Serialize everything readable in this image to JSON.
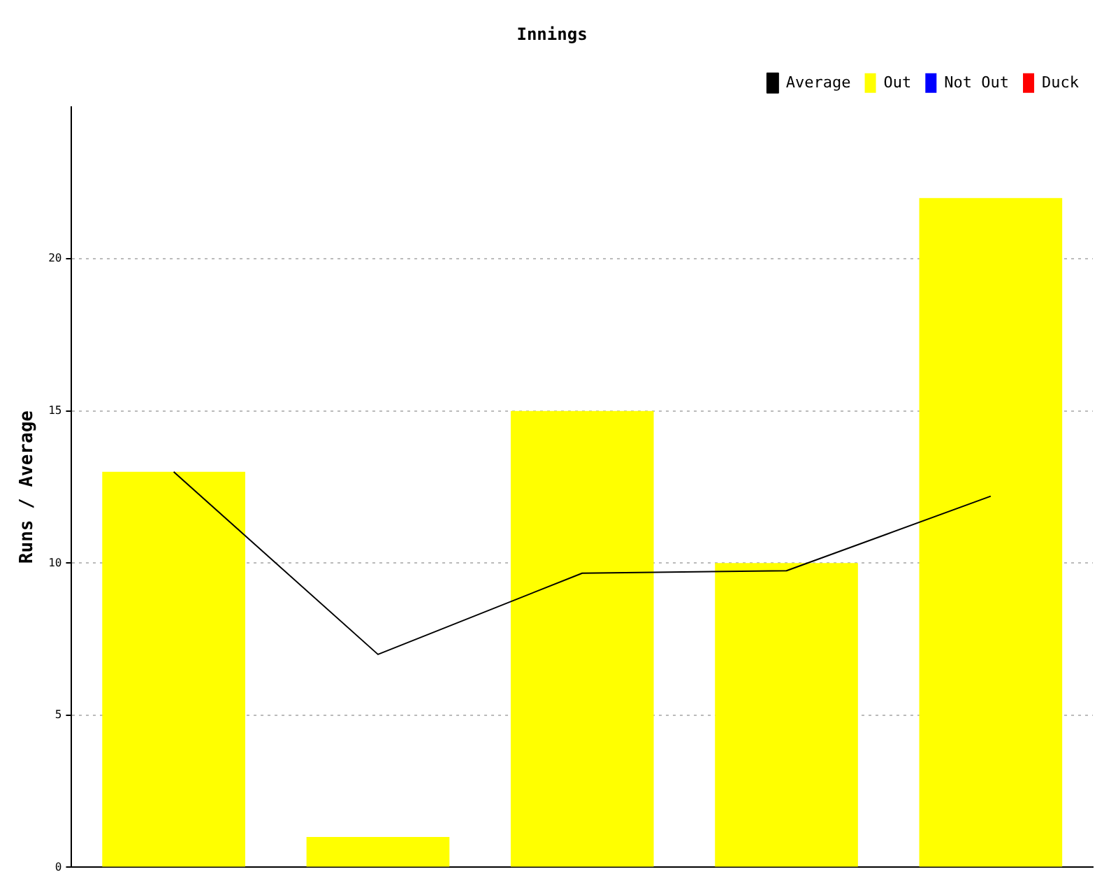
{
  "chart_data": {
    "type": "bar",
    "title": "Innings",
    "ylabel": "Runs / Average",
    "categories": [
      null,
      null,
      null,
      null,
      null
    ],
    "stacked": true,
    "series": [
      {
        "name": "Average",
        "type": "line",
        "color": "#000000",
        "values": [
          13,
          7,
          9.67,
          9.75,
          12.2
        ]
      },
      {
        "name": "Out",
        "color": "#ffff00",
        "values": [
          13,
          1,
          15,
          10,
          22
        ]
      },
      {
        "name": "Not Out",
        "color": "#0000ff",
        "values": [
          null,
          null,
          null,
          null,
          null
        ]
      },
      {
        "name": "Duck",
        "color": "#ff0000",
        "values": [
          null,
          null,
          null,
          null,
          null
        ]
      }
    ],
    "ylim": [
      0,
      25
    ],
    "yticks": [
      0,
      5,
      10,
      15,
      20
    ],
    "grid": "y",
    "legend": "top right",
    "marker": "none",
    "tick_labels": "y"
  }
}
